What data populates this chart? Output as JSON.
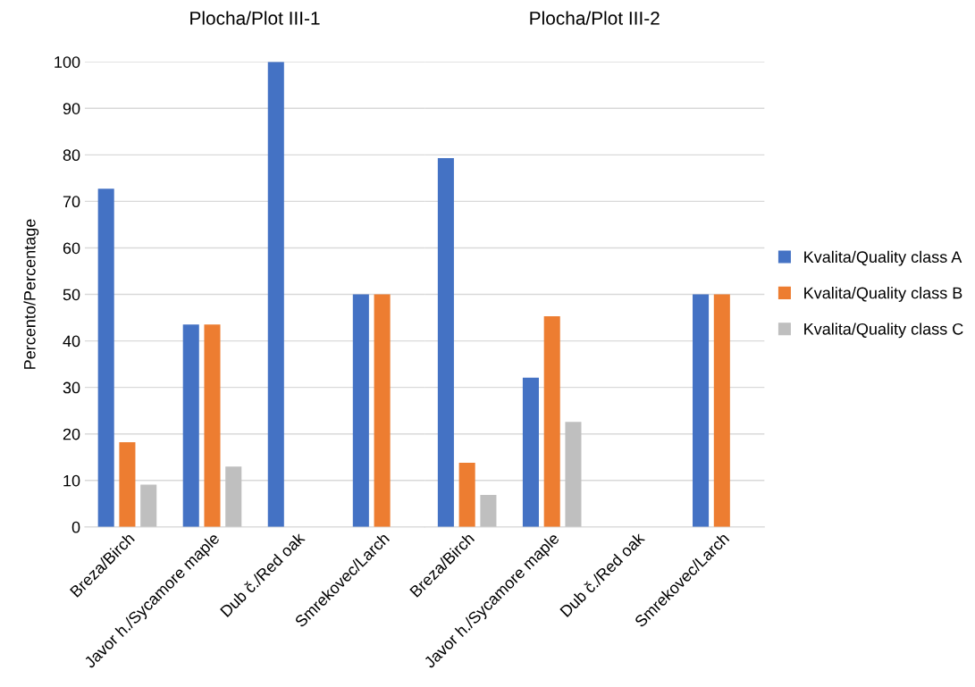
{
  "chart_data": [
    {
      "type": "bar",
      "title": "Plocha/Plot III-1",
      "ylabel": "Percento/Percentage",
      "categories": [
        "Breza/Birch",
        "Javor h./Sycamore maple",
        "Dub č./Red oak",
        "Smrekovec/Larch"
      ],
      "series": [
        {
          "name": "Kvalita/Quality class A",
          "color": "#4472c4",
          "values": [
            72.7,
            43.5,
            100,
            50
          ]
        },
        {
          "name": "Kvalita/Quality class B",
          "color": "#ed7d31",
          "values": [
            18.2,
            43.5,
            0,
            50
          ]
        },
        {
          "name": "Kvalita/Quality class C",
          "color": "#bfbfbf",
          "values": [
            9.1,
            13.0,
            0,
            0
          ]
        }
      ],
      "ylim": [
        0,
        100
      ],
      "yticks": [
        0,
        10,
        20,
        30,
        40,
        50,
        60,
        70,
        80,
        90,
        100
      ],
      "grid": "y",
      "legend": "right"
    },
    {
      "type": "bar",
      "title": "Plocha/Plot III-2",
      "categories": [
        "Breza/Birch",
        "Javor h./Sycamore maple",
        "Dub č./Red oak",
        "Smrekovec/Larch"
      ],
      "series": [
        {
          "color": "#4472c4",
          "values": [
            79.3,
            32.1,
            0,
            50
          ]
        },
        {
          "color": "#ed7d31",
          "values": [
            13.8,
            45.3,
            0,
            50
          ]
        },
        {
          "color": "#bfbfbf",
          "values": [
            6.9,
            22.6,
            0,
            0
          ]
        }
      ],
      "ylim": [
        0,
        100
      ],
      "yticks": [
        0,
        10,
        20,
        30,
        40,
        50,
        60,
        70,
        80,
        90,
        100
      ],
      "grid": "y",
      "tick_labels": "x"
    }
  ]
}
